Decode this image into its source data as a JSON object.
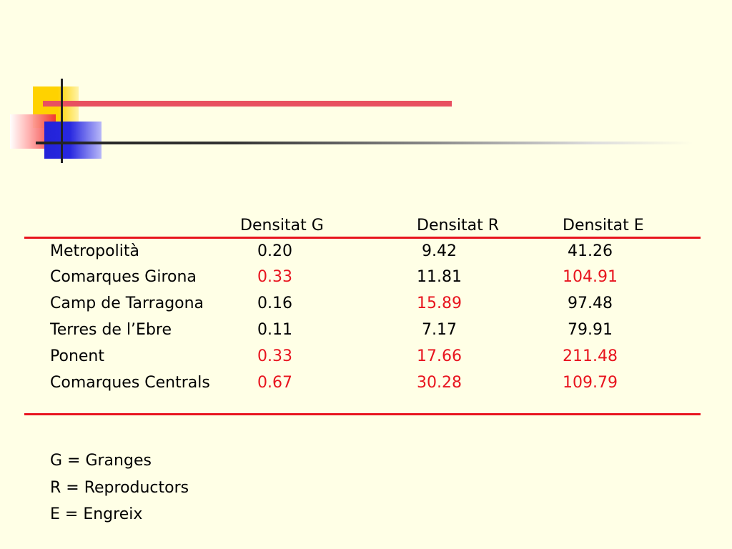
{
  "table": {
    "headers": {
      "g": "Densitat G",
      "r": "Densitat R",
      "e": "Densitat E"
    },
    "rows": [
      {
        "name": "Metropolità",
        "g": "0.20",
        "g_highlight": false,
        "r": " 9.42",
        "r_highlight": false,
        "e": " 41.26",
        "e_highlight": false
      },
      {
        "name": "Comarques Girona",
        "g": "0.33",
        "g_highlight": true,
        "r": "11.81",
        "r_highlight": false,
        "e": "104.91",
        "e_highlight": true
      },
      {
        "name": "Camp de Tarragona",
        "g": "0.16",
        "g_highlight": false,
        "r": "15.89",
        "r_highlight": true,
        "e": " 97.48",
        "e_highlight": false
      },
      {
        "name": "Terres de l’Ebre",
        "g": "0.11",
        "g_highlight": false,
        "r": " 7.17",
        "r_highlight": false,
        "e": " 79.91",
        "e_highlight": false
      },
      {
        "name": "Ponent",
        "g": "0.33",
        "g_highlight": true,
        "r": "17.66",
        "r_highlight": true,
        "e": "211.48",
        "e_highlight": true
      },
      {
        "name": "Comarques Centrals",
        "g": "0.67",
        "g_highlight": true,
        "r": "30.28",
        "r_highlight": true,
        "e": "109.79",
        "e_highlight": true
      }
    ]
  },
  "legend": {
    "g": "G = Granges",
    "r": "R = Reproductors",
    "e": "E = Engreix"
  },
  "colors": {
    "background": "#ffffe6",
    "highlight": "#e8141e",
    "rule": "#e8141e"
  }
}
